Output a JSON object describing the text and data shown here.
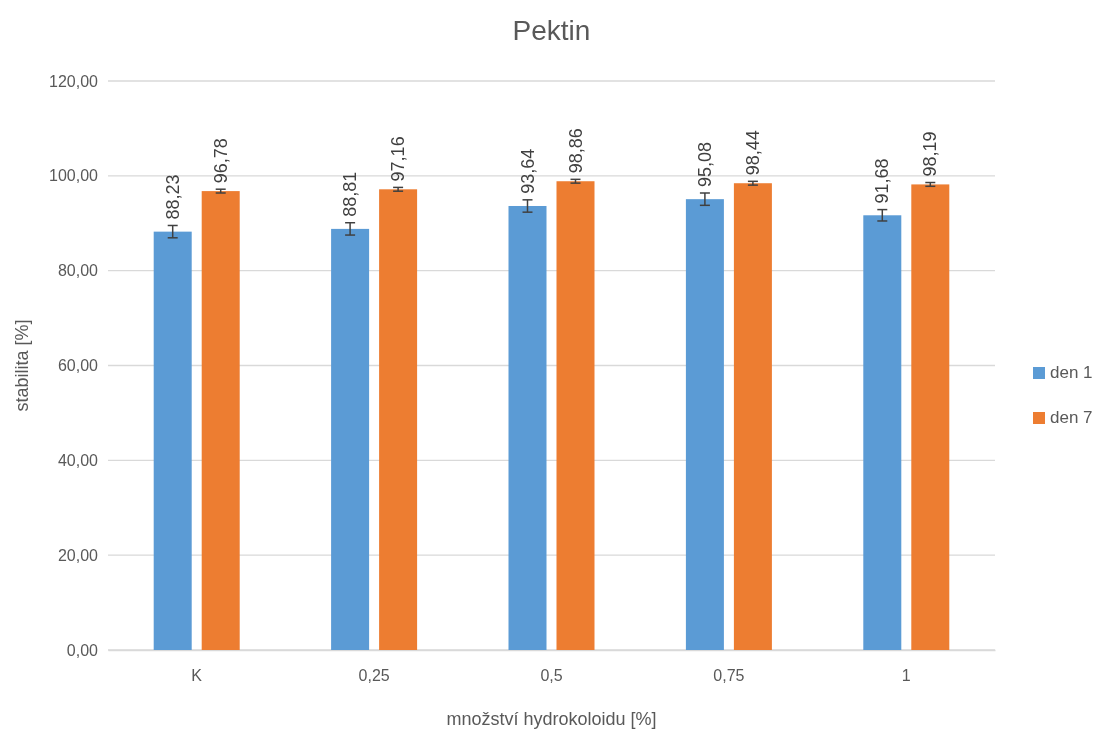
{
  "chart_data": {
    "type": "bar",
    "title": "Pektin",
    "xlabel": "množství hydrokoloidu [%]",
    "ylabel": "stabilita [%]",
    "categories": [
      "K",
      "0,25",
      "0,5",
      "0,75",
      "1"
    ],
    "series": [
      {
        "name": "den 1",
        "color": "#5b9bd5",
        "values": [
          88.23,
          88.81,
          93.64,
          95.08,
          91.68
        ],
        "errors": [
          1.3,
          1.3,
          1.3,
          1.3,
          1.2
        ],
        "value_labels": [
          "88,23",
          "88,81",
          "93,64",
          "95,08",
          "91,68"
        ]
      },
      {
        "name": "den 7",
        "color": "#ed7d31",
        "values": [
          96.78,
          97.16,
          98.86,
          98.44,
          98.19
        ],
        "errors": [
          0.4,
          0.4,
          0.4,
          0.4,
          0.4
        ],
        "value_labels": [
          "96,78",
          "97,16",
          "98,86",
          "98,44",
          "98,19"
        ]
      }
    ],
    "ylim": [
      0,
      120
    ],
    "yticks": [
      {
        "value": 0,
        "label": "0,00"
      },
      {
        "value": 20,
        "label": "20,00"
      },
      {
        "value": 40,
        "label": "40,00"
      },
      {
        "value": 60,
        "label": "60,00"
      },
      {
        "value": 80,
        "label": "80,00"
      },
      {
        "value": 100,
        "label": "100,00"
      },
      {
        "value": 120,
        "label": "120,00"
      }
    ],
    "grid": "y",
    "legend": "right"
  }
}
